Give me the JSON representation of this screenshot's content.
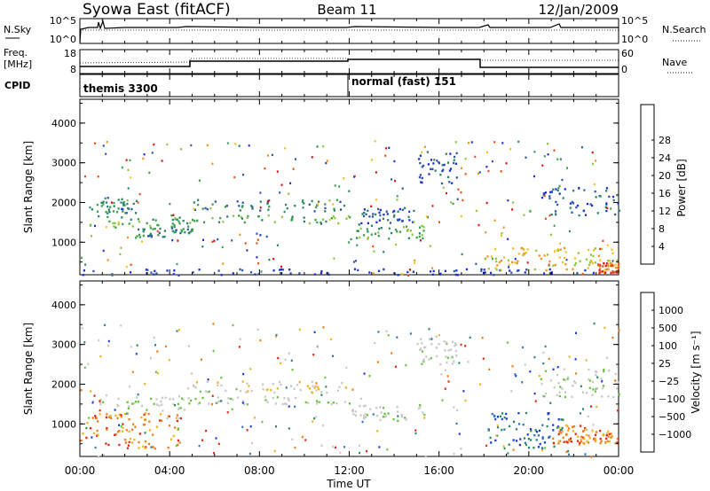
{
  "header": {
    "title": "Syowa East (fitACF)",
    "beam": "Beam 11",
    "date": "12/Jan/2009"
  },
  "aux": {
    "nsky_label": "N.Sky",
    "nsky_ticks": [
      "10^5",
      "10^0"
    ],
    "nsearch_label": "N.Search",
    "freq_label_1": "Freq.",
    "freq_label_2": "[MHz]",
    "freq_ticks": [
      "18",
      "8"
    ],
    "nave_ticks": [
      "60",
      "0"
    ],
    "nave_label": "Nave",
    "cpid_label": "CPID",
    "cpid_segments": [
      {
        "label": "themis 3300",
        "start": "00:00"
      },
      {
        "label": "normal (fast) 151",
        "start": "12:00"
      }
    ]
  },
  "chart_data": [
    {
      "type": "heatmap",
      "name": "power-panel",
      "ylabel": "Slant Range [km]",
      "yticks": [
        1000,
        2000,
        3000,
        4000
      ],
      "ylim": [
        180,
        4600
      ],
      "xlim": [
        "00:00",
        "24:00"
      ],
      "colorbar": {
        "label": "Power [dB]",
        "ticks": [
          "4",
          "8",
          "12",
          "16",
          "20",
          "24",
          "28"
        ],
        "colors": [
          "#1a2fd8",
          "#2e55a8",
          "#2a8468",
          "#3aa04a",
          "#8cc43a",
          "#f2c21c",
          "#f2921c",
          "#ee4a18",
          "#e01010"
        ]
      },
      "regions": [
        {
          "t0": 0.4,
          "t1": 5.0,
          "r0": 1350,
          "r1": 1700,
          "c": 3
        },
        {
          "t0": 0.5,
          "t1": 2.5,
          "r0": 1750,
          "r1": 2150,
          "c": 2
        },
        {
          "t0": 2.5,
          "t1": 5.0,
          "r0": 1150,
          "r1": 1400,
          "c": 2
        },
        {
          "t0": 5.0,
          "t1": 12.0,
          "r0": 1800,
          "r1": 2100,
          "c": 2
        },
        {
          "t0": 5.0,
          "t1": 12.0,
          "r0": 1500,
          "r1": 1700,
          "c": 3
        },
        {
          "t0": 12.0,
          "t1": 15.5,
          "r0": 1100,
          "r1": 1500,
          "c": 3
        },
        {
          "t0": 12.5,
          "t1": 15.0,
          "r0": 1500,
          "r1": 1900,
          "c": 1
        },
        {
          "t0": 15.0,
          "t1": 16.8,
          "r0": 2500,
          "r1": 3300,
          "c": 1
        },
        {
          "t0": 18.0,
          "t1": 24.0,
          "r0": 300,
          "r1": 900,
          "c": 5
        },
        {
          "t0": 20.5,
          "t1": 24.0,
          "r0": 1700,
          "r1": 2400,
          "c": 1
        },
        {
          "t0": 0.0,
          "t1": 24.0,
          "r0": 200,
          "r1": 350,
          "c": 0
        },
        {
          "t0": 23.0,
          "t1": 24.0,
          "r0": 250,
          "r1": 500,
          "c": 7
        }
      ]
    },
    {
      "type": "heatmap",
      "name": "velocity-panel",
      "ylabel": "Slant Range [km]",
      "yticks": [
        1000,
        2000,
        3000,
        4000
      ],
      "ylim": [
        180,
        4600
      ],
      "xlim": [
        "00:00",
        "24:00"
      ],
      "xticks": [
        "00:00",
        "04:00",
        "08:00",
        "12:00",
        "16:00",
        "20:00",
        "00:00"
      ],
      "xlabel": "Time UT",
      "colorbar": {
        "label": "Velocity [m s⁻¹]",
        "ticks": [
          "1000",
          "500",
          "100",
          "25",
          "−25",
          "−100",
          "−500",
          "−1000"
        ],
        "colors": [
          "#1a3ad8",
          "#2e7ab0",
          "#2a8a58",
          "#66c43a",
          "#c8c8c8",
          "#c8c8c8",
          "#f2b21c",
          "#f27a18",
          "#e02810"
        ]
      },
      "regions": [
        {
          "t0": 0.4,
          "t1": 5.0,
          "r0": 1350,
          "r1": 1700,
          "c": 4
        },
        {
          "t0": 0.0,
          "t1": 4.5,
          "r0": 400,
          "r1": 1300,
          "c": 7
        },
        {
          "t0": 5.0,
          "t1": 12.0,
          "r0": 1800,
          "r1": 2100,
          "c": 5
        },
        {
          "t0": 5.0,
          "t1": 12.0,
          "r0": 1500,
          "r1": 1700,
          "c": 4
        },
        {
          "t0": 12.0,
          "t1": 15.5,
          "r0": 1100,
          "r1": 1500,
          "c": 4
        },
        {
          "t0": 15.0,
          "t1": 16.8,
          "r0": 2500,
          "r1": 3300,
          "c": 4
        },
        {
          "t0": 18.0,
          "t1": 21.5,
          "r0": 400,
          "r1": 1300,
          "c": 1
        },
        {
          "t0": 21.0,
          "t1": 22.5,
          "r0": 500,
          "r1": 1000,
          "c": 7
        },
        {
          "t0": 22.3,
          "t1": 24.0,
          "r0": 500,
          "r1": 900,
          "c": 7
        },
        {
          "t0": 20.5,
          "t1": 24.0,
          "r0": 1700,
          "r1": 2400,
          "c": 4
        }
      ]
    }
  ]
}
